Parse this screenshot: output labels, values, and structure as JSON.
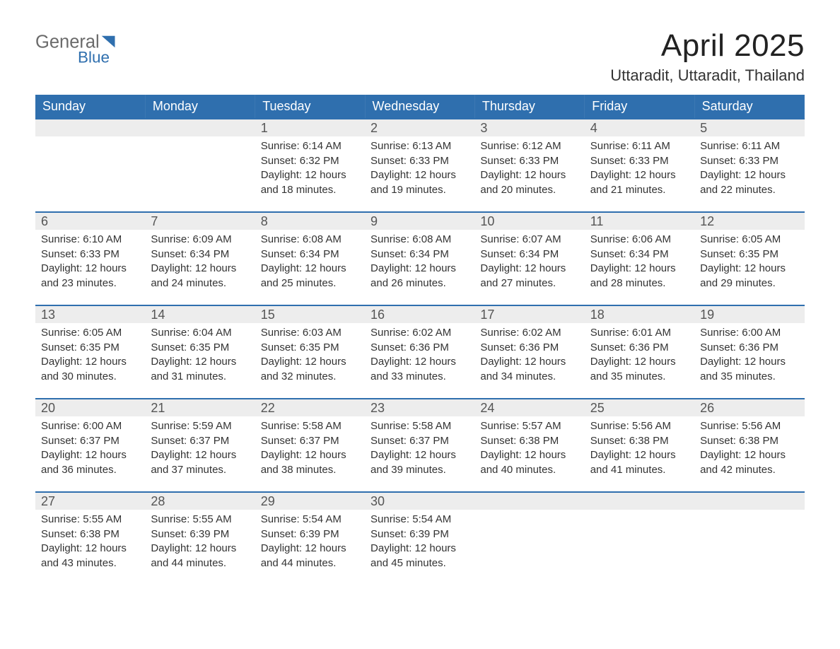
{
  "logo": {
    "word1": "General",
    "word2": "Blue",
    "gray": "#6b6b6b",
    "blue": "#2f6fae"
  },
  "title": "April 2025",
  "subtitle": "Uttaradit, Uttaradit, Thailand",
  "colors": {
    "header_bg": "#2f6fae",
    "header_text": "#ffffff",
    "daynum_bg": "#ededed",
    "daynum_border": "#2f6fae",
    "body_text": "#333333",
    "page_bg": "#ffffff"
  },
  "columns": [
    "Sunday",
    "Monday",
    "Tuesday",
    "Wednesday",
    "Thursday",
    "Friday",
    "Saturday"
  ],
  "weeks": [
    [
      null,
      null,
      {
        "n": "1",
        "sr": "Sunrise: 6:14 AM",
        "ss": "Sunset: 6:32 PM",
        "d1": "Daylight: 12 hours",
        "d2": "and 18 minutes."
      },
      {
        "n": "2",
        "sr": "Sunrise: 6:13 AM",
        "ss": "Sunset: 6:33 PM",
        "d1": "Daylight: 12 hours",
        "d2": "and 19 minutes."
      },
      {
        "n": "3",
        "sr": "Sunrise: 6:12 AM",
        "ss": "Sunset: 6:33 PM",
        "d1": "Daylight: 12 hours",
        "d2": "and 20 minutes."
      },
      {
        "n": "4",
        "sr": "Sunrise: 6:11 AM",
        "ss": "Sunset: 6:33 PM",
        "d1": "Daylight: 12 hours",
        "d2": "and 21 minutes."
      },
      {
        "n": "5",
        "sr": "Sunrise: 6:11 AM",
        "ss": "Sunset: 6:33 PM",
        "d1": "Daylight: 12 hours",
        "d2": "and 22 minutes."
      }
    ],
    [
      {
        "n": "6",
        "sr": "Sunrise: 6:10 AM",
        "ss": "Sunset: 6:33 PM",
        "d1": "Daylight: 12 hours",
        "d2": "and 23 minutes."
      },
      {
        "n": "7",
        "sr": "Sunrise: 6:09 AM",
        "ss": "Sunset: 6:34 PM",
        "d1": "Daylight: 12 hours",
        "d2": "and 24 minutes."
      },
      {
        "n": "8",
        "sr": "Sunrise: 6:08 AM",
        "ss": "Sunset: 6:34 PM",
        "d1": "Daylight: 12 hours",
        "d2": "and 25 minutes."
      },
      {
        "n": "9",
        "sr": "Sunrise: 6:08 AM",
        "ss": "Sunset: 6:34 PM",
        "d1": "Daylight: 12 hours",
        "d2": "and 26 minutes."
      },
      {
        "n": "10",
        "sr": "Sunrise: 6:07 AM",
        "ss": "Sunset: 6:34 PM",
        "d1": "Daylight: 12 hours",
        "d2": "and 27 minutes."
      },
      {
        "n": "11",
        "sr": "Sunrise: 6:06 AM",
        "ss": "Sunset: 6:34 PM",
        "d1": "Daylight: 12 hours",
        "d2": "and 28 minutes."
      },
      {
        "n": "12",
        "sr": "Sunrise: 6:05 AM",
        "ss": "Sunset: 6:35 PM",
        "d1": "Daylight: 12 hours",
        "d2": "and 29 minutes."
      }
    ],
    [
      {
        "n": "13",
        "sr": "Sunrise: 6:05 AM",
        "ss": "Sunset: 6:35 PM",
        "d1": "Daylight: 12 hours",
        "d2": "and 30 minutes."
      },
      {
        "n": "14",
        "sr": "Sunrise: 6:04 AM",
        "ss": "Sunset: 6:35 PM",
        "d1": "Daylight: 12 hours",
        "d2": "and 31 minutes."
      },
      {
        "n": "15",
        "sr": "Sunrise: 6:03 AM",
        "ss": "Sunset: 6:35 PM",
        "d1": "Daylight: 12 hours",
        "d2": "and 32 minutes."
      },
      {
        "n": "16",
        "sr": "Sunrise: 6:02 AM",
        "ss": "Sunset: 6:36 PM",
        "d1": "Daylight: 12 hours",
        "d2": "and 33 minutes."
      },
      {
        "n": "17",
        "sr": "Sunrise: 6:02 AM",
        "ss": "Sunset: 6:36 PM",
        "d1": "Daylight: 12 hours",
        "d2": "and 34 minutes."
      },
      {
        "n": "18",
        "sr": "Sunrise: 6:01 AM",
        "ss": "Sunset: 6:36 PM",
        "d1": "Daylight: 12 hours",
        "d2": "and 35 minutes."
      },
      {
        "n": "19",
        "sr": "Sunrise: 6:00 AM",
        "ss": "Sunset: 6:36 PM",
        "d1": "Daylight: 12 hours",
        "d2": "and 35 minutes."
      }
    ],
    [
      {
        "n": "20",
        "sr": "Sunrise: 6:00 AM",
        "ss": "Sunset: 6:37 PM",
        "d1": "Daylight: 12 hours",
        "d2": "and 36 minutes."
      },
      {
        "n": "21",
        "sr": "Sunrise: 5:59 AM",
        "ss": "Sunset: 6:37 PM",
        "d1": "Daylight: 12 hours",
        "d2": "and 37 minutes."
      },
      {
        "n": "22",
        "sr": "Sunrise: 5:58 AM",
        "ss": "Sunset: 6:37 PM",
        "d1": "Daylight: 12 hours",
        "d2": "and 38 minutes."
      },
      {
        "n": "23",
        "sr": "Sunrise: 5:58 AM",
        "ss": "Sunset: 6:37 PM",
        "d1": "Daylight: 12 hours",
        "d2": "and 39 minutes."
      },
      {
        "n": "24",
        "sr": "Sunrise: 5:57 AM",
        "ss": "Sunset: 6:38 PM",
        "d1": "Daylight: 12 hours",
        "d2": "and 40 minutes."
      },
      {
        "n": "25",
        "sr": "Sunrise: 5:56 AM",
        "ss": "Sunset: 6:38 PM",
        "d1": "Daylight: 12 hours",
        "d2": "and 41 minutes."
      },
      {
        "n": "26",
        "sr": "Sunrise: 5:56 AM",
        "ss": "Sunset: 6:38 PM",
        "d1": "Daylight: 12 hours",
        "d2": "and 42 minutes."
      }
    ],
    [
      {
        "n": "27",
        "sr": "Sunrise: 5:55 AM",
        "ss": "Sunset: 6:38 PM",
        "d1": "Daylight: 12 hours",
        "d2": "and 43 minutes."
      },
      {
        "n": "28",
        "sr": "Sunrise: 5:55 AM",
        "ss": "Sunset: 6:39 PM",
        "d1": "Daylight: 12 hours",
        "d2": "and 44 minutes."
      },
      {
        "n": "29",
        "sr": "Sunrise: 5:54 AM",
        "ss": "Sunset: 6:39 PM",
        "d1": "Daylight: 12 hours",
        "d2": "and 44 minutes."
      },
      {
        "n": "30",
        "sr": "Sunrise: 5:54 AM",
        "ss": "Sunset: 6:39 PM",
        "d1": "Daylight: 12 hours",
        "d2": "and 45 minutes."
      },
      null,
      null,
      null
    ]
  ]
}
